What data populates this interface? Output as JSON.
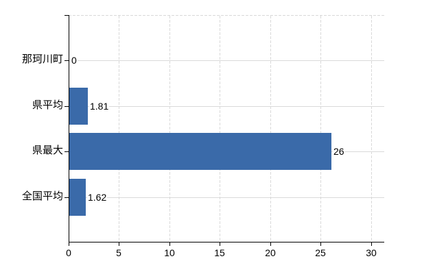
{
  "chart_data": {
    "type": "bar",
    "orientation": "horizontal",
    "title": "",
    "xlabel": "",
    "ylabel": "",
    "categories": [
      "那珂川町",
      "県平均",
      "県最大",
      "全国平均"
    ],
    "values": [
      0,
      1.81,
      26,
      1.62
    ],
    "value_labels": [
      "0",
      "1.81",
      "26",
      "1.62"
    ],
    "x_ticks": [
      0,
      5,
      10,
      15,
      20,
      25,
      30
    ],
    "x_tick_labels": [
      "0",
      "5",
      "10",
      "15",
      "20",
      "25",
      "30"
    ],
    "xlim": [
      0,
      31.3
    ],
    "grid": "on",
    "legend": "none",
    "colors": {
      "bar": "#3a6aa9",
      "gridline": "#d9d9d9",
      "axis": "#000000",
      "text": "#000000",
      "background": "#ffffff"
    }
  }
}
